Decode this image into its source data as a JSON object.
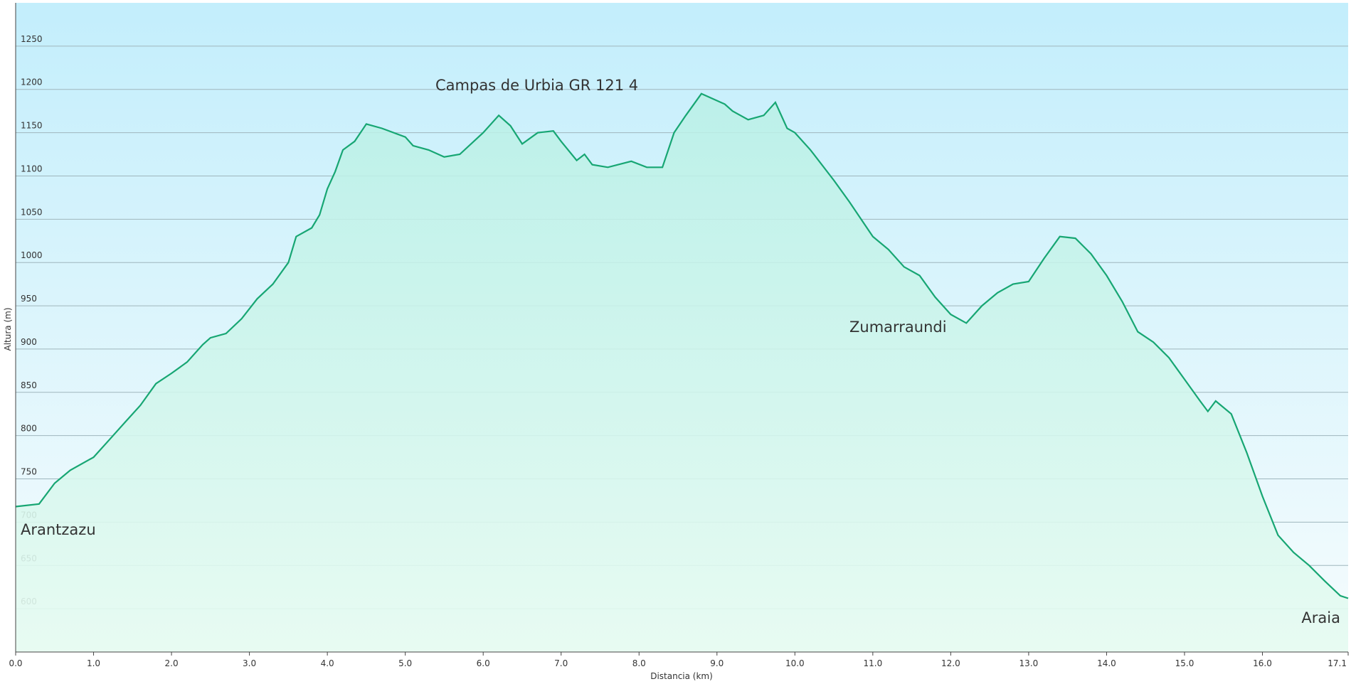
{
  "chart_data": {
    "type": "area",
    "x_label": "Distancia  (km)",
    "y_label": "Altura (m)",
    "color": "#17a673",
    "annotations": [
      "Campas de Urbia GR 121 4",
      "Zumarraundi",
      "Arantzazu",
      "Araia"
    ],
    "x": [
      0.0,
      0.3,
      0.5,
      0.7,
      1.0,
      1.2,
      1.4,
      1.6,
      1.8,
      2.0,
      2.2,
      2.4,
      2.5,
      2.7,
      2.9,
      3.1,
      3.3,
      3.5,
      3.6,
      3.8,
      3.9,
      4.0,
      4.1,
      4.2,
      4.35,
      4.5,
      4.7,
      5.0,
      5.1,
      5.3,
      5.5,
      5.7,
      6.0,
      6.2,
      6.35,
      6.5,
      6.7,
      6.9,
      7.0,
      7.2,
      7.3,
      7.4,
      7.6,
      7.9,
      8.1,
      8.3,
      8.45,
      8.6,
      8.8,
      9.1,
      9.2,
      9.4,
      9.6,
      9.75,
      9.9,
      10.0,
      10.2,
      10.5,
      10.7,
      11.0,
      11.2,
      11.4,
      11.6,
      11.8,
      12.0,
      12.2,
      12.4,
      12.6,
      12.8,
      13.0,
      13.2,
      13.4,
      13.6,
      13.8,
      14.0,
      14.2,
      14.4,
      14.6,
      14.8,
      15.0,
      15.2,
      15.3,
      15.4,
      15.6,
      15.8,
      16.0,
      16.2,
      16.4,
      16.6,
      16.8,
      17.0,
      17.1
    ],
    "values": [
      718,
      721,
      745,
      760,
      775,
      795,
      815,
      835,
      860,
      872,
      885,
      905,
      913,
      918,
      935,
      958,
      975,
      1000,
      1030,
      1040,
      1055,
      1085,
      1105,
      1130,
      1140,
      1160,
      1155,
      1145,
      1135,
      1130,
      1122,
      1125,
      1150,
      1170,
      1158,
      1137,
      1150,
      1152,
      1140,
      1118,
      1125,
      1113,
      1110,
      1117,
      1110,
      1110,
      1150,
      1170,
      1195,
      1183,
      1175,
      1165,
      1170,
      1185,
      1155,
      1150,
      1130,
      1095,
      1070,
      1030,
      1015,
      995,
      985,
      960,
      940,
      930,
      950,
      965,
      975,
      978,
      1005,
      1030,
      1028,
      1010,
      985,
      955,
      920,
      908,
      890,
      865,
      840,
      828,
      840,
      825,
      780,
      730,
      685,
      665,
      650,
      632,
      615,
      612
    ],
    "xlim": [
      0,
      17.1
    ],
    "xticks": [
      {
        "value": 0,
        "label": "0.0"
      },
      {
        "value": 1,
        "label": "1.0"
      },
      {
        "value": 2,
        "label": "2.0"
      },
      {
        "value": 3,
        "label": "3.0"
      },
      {
        "value": 4,
        "label": "4.0"
      },
      {
        "value": 5,
        "label": "5.0"
      },
      {
        "value": 6,
        "label": "6.0"
      },
      {
        "value": 7,
        "label": "7.0"
      },
      {
        "value": 8,
        "label": "8.0"
      },
      {
        "value": 9,
        "label": "9.0"
      },
      {
        "value": 10,
        "label": "10.0"
      },
      {
        "value": 11,
        "label": "11.0"
      },
      {
        "value": 12,
        "label": "12.0"
      },
      {
        "value": 13,
        "label": "13.0"
      },
      {
        "value": 14,
        "label": "14.0"
      },
      {
        "value": 15,
        "label": "15.0"
      },
      {
        "value": 16,
        "label": "16.0"
      },
      17.1
    ],
    "ylim": [
      550,
      1300
    ],
    "yticks": [
      600,
      650,
      700,
      750,
      800,
      850,
      900,
      950,
      1000,
      1050,
      1100,
      1150,
      1200,
      1250
    ],
    "grid": true
  }
}
